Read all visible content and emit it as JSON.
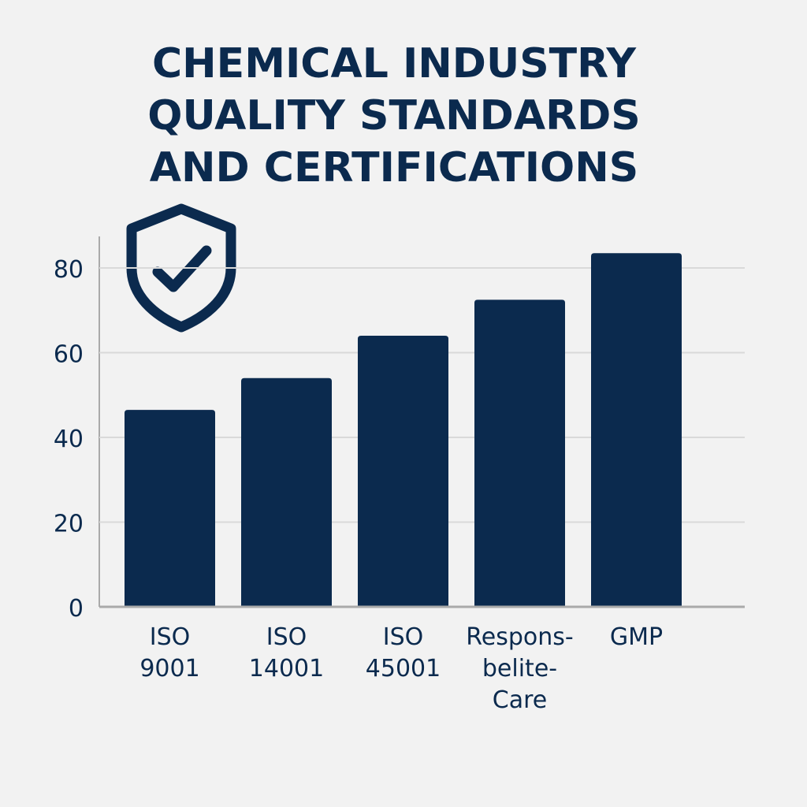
{
  "chart_data": {
    "type": "bar",
    "title": [
      "CHEMICAL INDUSTRY",
      "QUALITY STANDARDS",
      "AND CERTIFICATIONS"
    ],
    "categories": [
      [
        "ISO",
        "9001"
      ],
      [
        "ISO",
        "14001"
      ],
      [
        "ISO",
        "45001"
      ],
      [
        "Respons-",
        "belite-",
        "Care"
      ],
      [
        "GMP"
      ]
    ],
    "values": [
      46.5,
      54,
      64,
      72.5,
      83.5
    ],
    "yticks": [
      "0",
      "20",
      "40",
      "60",
      "80"
    ],
    "ylim": [
      0,
      80
    ],
    "grid": true,
    "xlabel": "",
    "ylabel": "",
    "colors": {
      "bar": "#0b2a4e",
      "text": "#0b2a4e",
      "grid": "#d9d9d9",
      "axis": "#aaaaaa"
    },
    "icon": "shield-check-icon"
  }
}
